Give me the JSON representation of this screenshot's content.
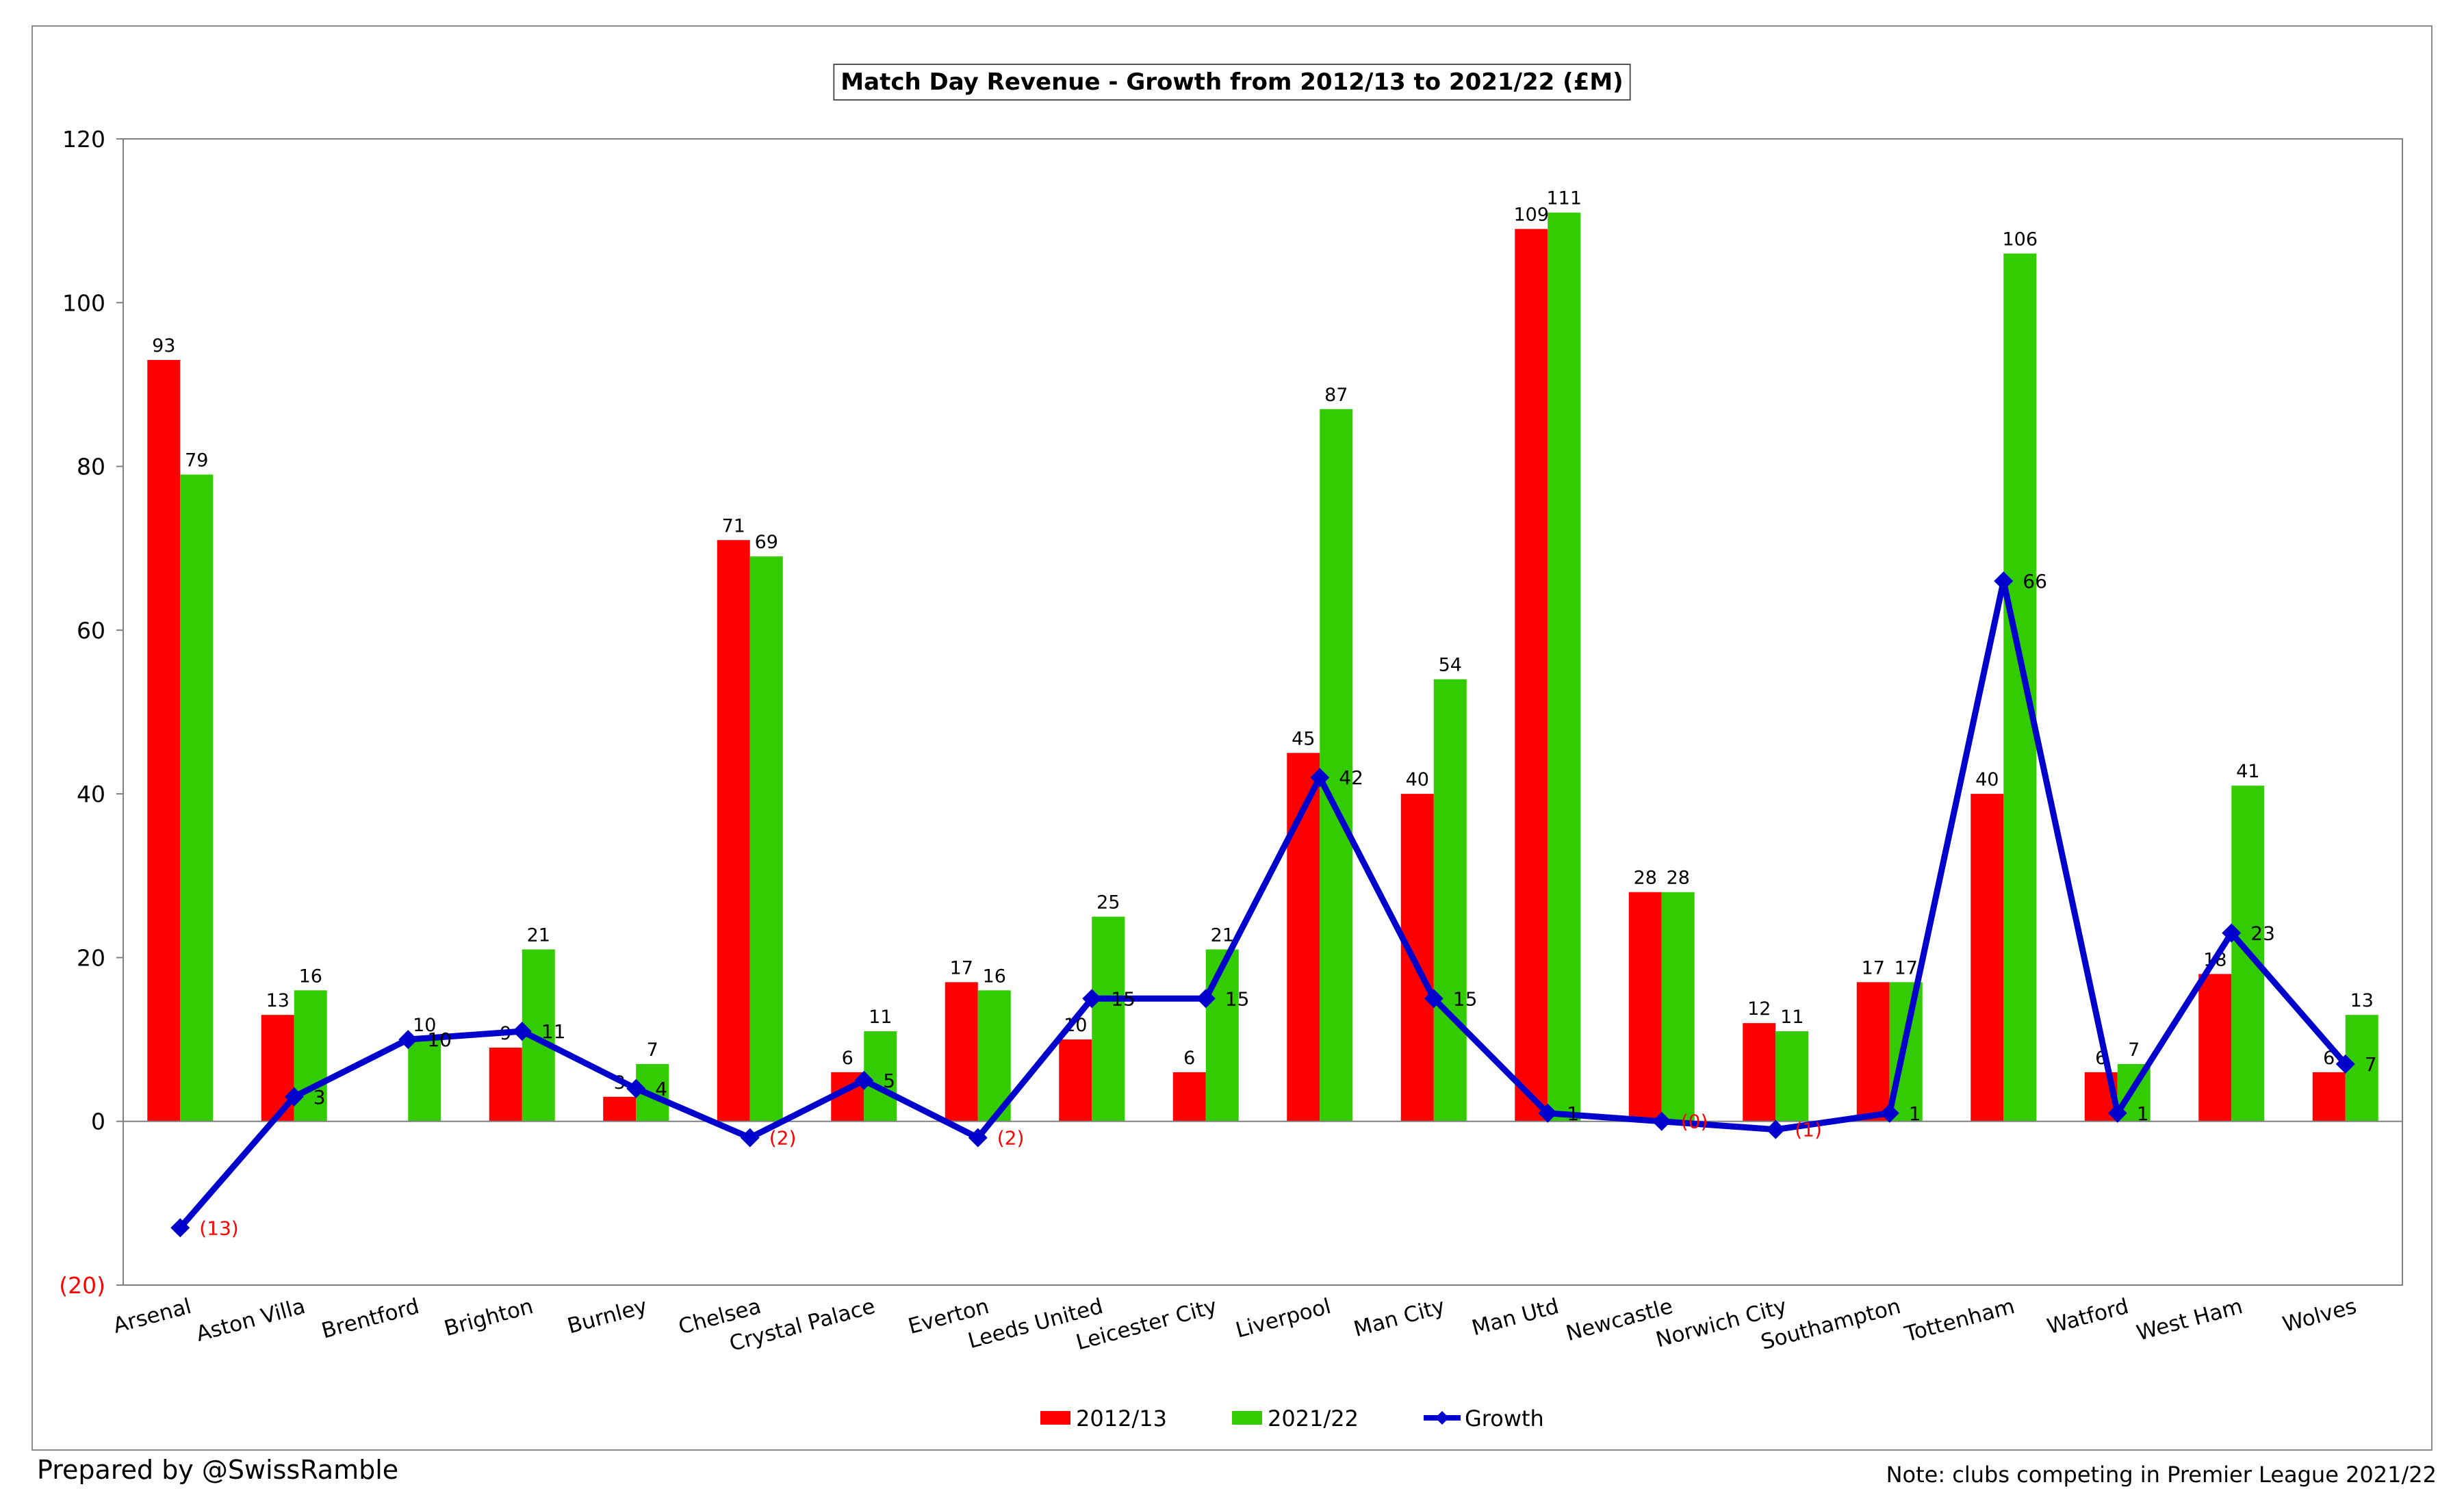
{
  "chart_data": {
    "type": "bar",
    "title": "Match Day Revenue - Growth from 2012/13 to 2021/22 (£M)",
    "xlabel": "",
    "ylabel": "",
    "ylim": [
      -20,
      120
    ],
    "yticks": [
      -20,
      0,
      20,
      40,
      60,
      80,
      100,
      120
    ],
    "ytick_labels": [
      "(20)",
      "0",
      "20",
      "40",
      "60",
      "80",
      "100",
      "120"
    ],
    "legend_position": "bottom",
    "categories": [
      "Arsenal",
      "Aston Villa",
      "Brentford",
      "Brighton",
      "Burnley",
      "Chelsea",
      "Crystal Palace",
      "Everton",
      "Leeds United",
      "Leicester City",
      "Liverpool",
      "Man City",
      "Man Utd",
      "Newcastle",
      "Norwich City",
      "Southampton",
      "Tottenham",
      "Watford",
      "West Ham",
      "Wolves"
    ],
    "series": [
      {
        "name": "2012/13",
        "kind": "bar",
        "color": "#ff0000",
        "values": [
          93,
          13,
          0,
          9,
          3,
          71,
          6,
          17,
          10,
          6,
          45,
          40,
          109,
          28,
          12,
          17,
          40,
          6,
          18,
          6
        ],
        "labels": [
          "93",
          "13",
          "",
          "9",
          "3",
          "71",
          "6",
          "17",
          "10",
          "6",
          "45",
          "40",
          "109",
          "28",
          "12",
          "17",
          "40",
          "6",
          "18",
          "6"
        ]
      },
      {
        "name": "2021/22",
        "kind": "bar",
        "color": "#33cc00",
        "values": [
          79,
          16,
          10,
          21,
          7,
          69,
          11,
          16,
          25,
          21,
          87,
          54,
          111,
          28,
          11,
          17,
          106,
          7,
          41,
          13
        ],
        "labels": [
          "79",
          "16",
          "10",
          "21",
          "7",
          "69",
          "11",
          "16",
          "25",
          "21",
          "87",
          "54",
          "111",
          "28",
          "11",
          "17",
          "106",
          "7",
          "41",
          "13"
        ]
      },
      {
        "name": "Growth",
        "kind": "line",
        "color": "#0000cc",
        "values": [
          -13,
          3,
          10,
          11,
          4,
          -2,
          5,
          -2,
          15,
          15,
          42,
          15,
          1,
          0,
          -1,
          1,
          66,
          1,
          23,
          7
        ],
        "labels": [
          "(13)",
          "3",
          "10",
          "11",
          "4",
          "(2)",
          "5",
          "(2)",
          "15",
          "15",
          "42",
          "15",
          "1",
          "(0)",
          "(1)",
          "1",
          "66",
          "1",
          "23",
          "7"
        ]
      }
    ],
    "colors": {
      "negative_label": "#ff0000",
      "axis": "#808080",
      "text": "#000000"
    }
  },
  "footer": {
    "prepared_by": "Prepared by @SwissRamble",
    "note": "Note: clubs competing in Premier League 2021/22"
  }
}
